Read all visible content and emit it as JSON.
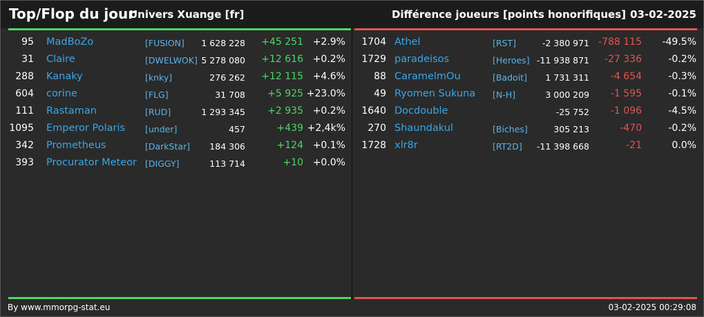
{
  "header": {
    "title": "Top/Flop du jour",
    "subtitle": "Univers Xuange [fr]",
    "metric": "Différence joueurs [points honorifiques]",
    "date": "03-02-2025"
  },
  "colors": {
    "positive": "#4cd964",
    "negative": "#e0564f",
    "name": "#3aa6e8"
  },
  "top": [
    {
      "rank": "95",
      "name": "MadBoZo",
      "guild": "[FUSION]",
      "points": "1 628 228",
      "diff": "+45 251",
      "pct": "+2.9%"
    },
    {
      "rank": "31",
      "name": "Claire",
      "guild": "[DWELWOK]",
      "points": "5 278 080",
      "diff": "+12 616",
      "pct": "+0.2%"
    },
    {
      "rank": "288",
      "name": "Kanaky",
      "guild": "[knky]",
      "points": "276 262",
      "diff": "+12 115",
      "pct": "+4.6%"
    },
    {
      "rank": "604",
      "name": "corine",
      "guild": "[FLG]",
      "points": "31 708",
      "diff": "+5 925",
      "pct": "+23.0%"
    },
    {
      "rank": "111",
      "name": "Rastaman",
      "guild": "[RUD]",
      "points": "1 293 345",
      "diff": "+2 935",
      "pct": "+0.2%"
    },
    {
      "rank": "1095",
      "name": "Emperor Polaris",
      "guild": "[under]",
      "points": "457",
      "diff": "+439",
      "pct": "+2,4k%"
    },
    {
      "rank": "342",
      "name": "Prometheus",
      "guild": "[DarkStar]",
      "points": "184 306",
      "diff": "+124",
      "pct": "+0.1%"
    },
    {
      "rank": "393",
      "name": "Procurator Meteor",
      "guild": "[DIGGY]",
      "points": "113 714",
      "diff": "+10",
      "pct": "+0.0%"
    }
  ],
  "flop": [
    {
      "rank": "1704",
      "name": "Athel",
      "guild": "[RST]",
      "points": "-2 380 971",
      "diff": "-788 115",
      "pct": "-49.5%"
    },
    {
      "rank": "1729",
      "name": "paradeisos",
      "guild": "[Heroes]",
      "points": "-11 938 871",
      "diff": "-27 336",
      "pct": "-0.2%"
    },
    {
      "rank": "88",
      "name": "CaramelmOu",
      "guild": "[Badoit]",
      "points": "1 731 311",
      "diff": "-4 654",
      "pct": "-0.3%"
    },
    {
      "rank": "49",
      "name": "Ryomen Sukuna",
      "guild": "[N-H]",
      "points": "3 000 209",
      "diff": "-1 595",
      "pct": "-0.1%"
    },
    {
      "rank": "1640",
      "name": "Docdouble",
      "guild": "",
      "points": "-25 752",
      "diff": "-1 096",
      "pct": "-4.5%"
    },
    {
      "rank": "270",
      "name": "Shaundakul",
      "guild": "[Biches]",
      "points": "305 213",
      "diff": "-470",
      "pct": "-0.2%"
    },
    {
      "rank": "1728",
      "name": "xlr8r",
      "guild": "[RT2D]",
      "points": "-11 398 668",
      "diff": "-21",
      "pct": "0.0%"
    }
  ],
  "footer": {
    "credit": "By www.mmorpg-stat.eu",
    "timestamp": "03-02-2025 00:29:08"
  }
}
